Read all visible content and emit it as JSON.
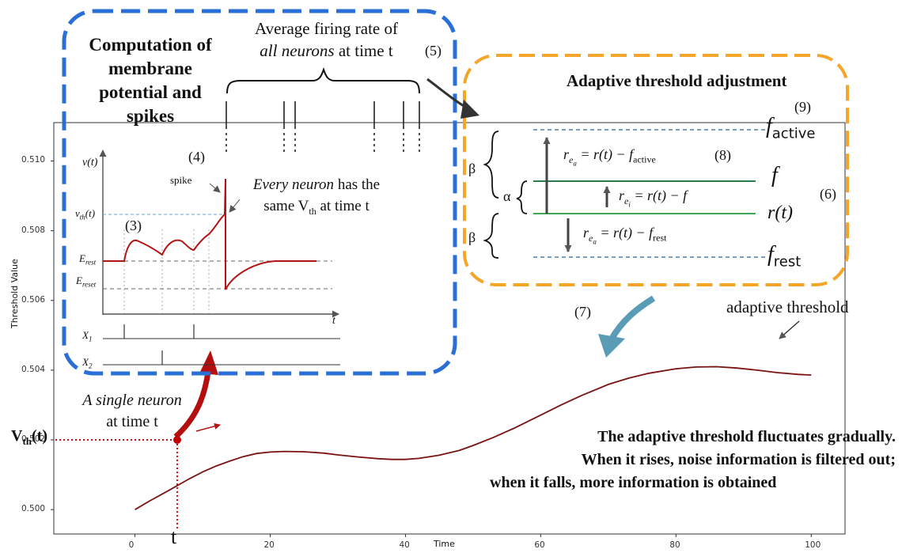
{
  "colors": {
    "blue_box": "#2a6fd6",
    "orange_box": "#f5a52a",
    "threshold_curve": "#7a1212",
    "dotted_red": "#cc1111",
    "big_red_arrow": "#b30f0f",
    "teal_arrow": "#5a9bb5",
    "green_lines": "#3aaa5a",
    "dashed_blue": "#4f7fa6"
  },
  "main_plot": {
    "xlabel": "Time",
    "ylabel": "Threshold Value",
    "xticks": [
      "0",
      "20",
      "40",
      "60",
      "80",
      "100"
    ],
    "yticks": [
      "0.500",
      "0.502",
      "0.504",
      "0.506",
      "0.508",
      "0.510"
    ]
  },
  "chart_data": {
    "type": "line",
    "x": [
      0,
      2,
      5,
      8,
      10,
      12,
      14,
      16,
      18,
      20,
      22,
      25,
      28,
      30,
      33,
      36,
      38,
      40,
      42,
      45,
      48,
      50,
      53,
      56,
      60,
      63,
      66,
      70,
      73,
      76,
      80,
      83,
      86,
      89,
      92,
      95,
      98,
      100
    ],
    "y": [
      0.5,
      0.50023,
      0.50055,
      0.50088,
      0.50108,
      0.50125,
      0.50139,
      0.50152,
      0.50161,
      0.50165,
      0.50167,
      0.50166,
      0.50162,
      0.50157,
      0.50151,
      0.50146,
      0.50144,
      0.50144,
      0.50147,
      0.50156,
      0.5017,
      0.50184,
      0.50207,
      0.50233,
      0.50271,
      0.503,
      0.50327,
      0.50359,
      0.50377,
      0.50391,
      0.50404,
      0.50409,
      0.5041,
      0.50406,
      0.504,
      0.50393,
      0.50388,
      0.50386
    ],
    "xlim": [
      -12,
      105
    ],
    "ylim": [
      0.4993,
      0.5111
    ],
    "xlabel": "Time",
    "ylabel": "Threshold Value"
  },
  "left_panel": {
    "title_lines": [
      "Computation of",
      "membrane",
      "potential and",
      "spikes"
    ],
    "step3": "(3)",
    "step4": "(4)",
    "spike_label": "spike",
    "every_neuron_em": "Every neuron",
    "every_neuron_rest": " has the",
    "same_vth_pre": "same V",
    "same_vth_sub": "th",
    "same_vth_post": " at time t",
    "axis_v": "v(t)",
    "axis_t": "t",
    "vth_label": "v",
    "vth_sub": "th",
    "vth_suffix": "(t)",
    "erest_label": "E",
    "erest_sub": "rest",
    "ereset_label": "E",
    "ereset_sub": "reset",
    "x1_label": "X",
    "x1_sub": "1",
    "x2_label": "X",
    "x2_sub": "2"
  },
  "top_text": {
    "line1": "Average firing rate of",
    "line2_em": "all neurons",
    "line2_rest": " at time t",
    "step5": "(5)"
  },
  "right_panel": {
    "title": "Adaptive threshold adjustment",
    "step9": "(9)",
    "step8": "(8)",
    "step6": "(6)",
    "f_active": "f",
    "f_active_sub": "active",
    "f": "f",
    "r_t": "r(t)",
    "f_rest": "f",
    "f_rest_sub": "rest",
    "eq1_lhs": "r",
    "eq1_sub": "e",
    "eq1_subsub": "a",
    "eq1_rhs": " = r(t) − f",
    "eq1_rhs_sub": "active",
    "eq2_lhs": "r",
    "eq2_sub": "e",
    "eq2_subsub": "i",
    "eq2_rhs": " = r(t) − f",
    "eq3_lhs": "r",
    "eq3_sub": "e",
    "eq3_subsub": "a",
    "eq3_rhs": " = r(t) − f",
    "eq3_rhs_sub": "rest",
    "beta_top": "β",
    "alpha": "α",
    "beta_bottom": "β"
  },
  "bottom_annotations": {
    "step7": "(7)",
    "adaptive_threshold": "adaptive threshold",
    "single_neuron_em": "A single neuron",
    "single_neuron_rest": "at time t",
    "vth_label": "V",
    "vth_sub": "th",
    "vth_suffix": "(t)",
    "t_label": "t",
    "desc_line1": "The adaptive threshold fluctuates gradually.",
    "desc_line2": "When it rises, noise information is filtered out;",
    "desc_line3": "when it falls, more information is obtained"
  }
}
